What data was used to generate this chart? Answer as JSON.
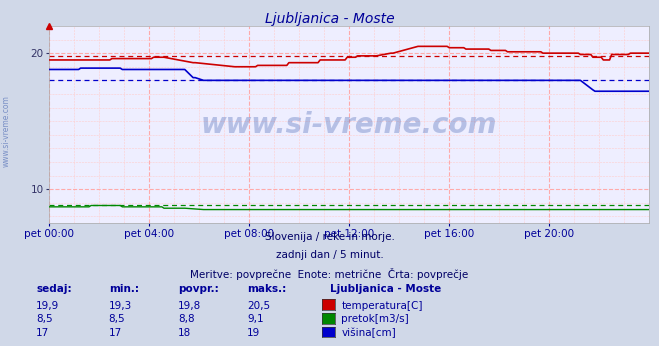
{
  "title": "Ljubljanica - Moste",
  "title_color": "#000099",
  "background_color": "#d0d8e8",
  "plot_bg_color": "#eeeeff",
  "xlabel_color": "#000099",
  "ylim": [
    7.5,
    22.0
  ],
  "yticks": [
    10,
    20
  ],
  "xlim": [
    0,
    288
  ],
  "xtick_labels": [
    "pet 00:00",
    "pet 04:00",
    "pet 08:00",
    "pet 12:00",
    "pet 16:00",
    "pet 20:00"
  ],
  "xtick_positions": [
    0,
    48,
    96,
    144,
    192,
    240
  ],
  "subtitle_lines": [
    "Slovenija / reke in morje.",
    "zadnji dan / 5 minut.",
    "Meritve: povprečne  Enote: metrične  Črta: povprečje"
  ],
  "watermark": "www.si-vreme.com",
  "legend_title": "Ljubljanica - Moste",
  "legend_items": [
    {
      "label": "temperatura[C]",
      "color": "#cc0000"
    },
    {
      "label": "pretok[m3/s]",
      "color": "#008800"
    },
    {
      "label": "višina[cm]",
      "color": "#0000cc"
    }
  ],
  "table_headers": [
    "sedaj:",
    "min.:",
    "povpr.:",
    "maks.:"
  ],
  "table_rows": [
    [
      "19,9",
      "19,3",
      "19,8",
      "20,5"
    ],
    [
      "8,5",
      "8,5",
      "8,8",
      "9,1"
    ],
    [
      "17",
      "17",
      "18",
      "19"
    ]
  ],
  "temp_avg": 19.8,
  "pretok_avg": 8.8,
  "visina_avg": 18.0,
  "temp_color": "#cc0000",
  "pretok_color": "#008800",
  "visina_color": "#0000cc"
}
